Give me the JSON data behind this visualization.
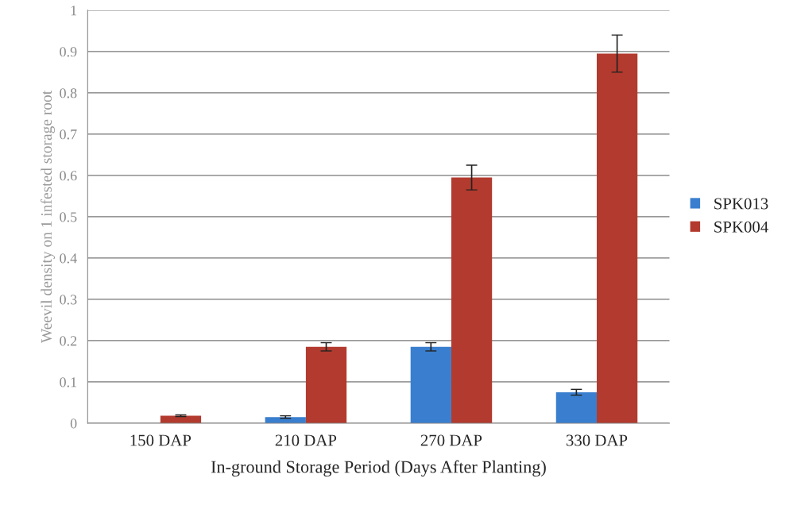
{
  "chart_data": {
    "type": "bar",
    "xlabel": "In-ground Storage Period (Days After Planting)",
    "ylabel": "Weevil density on 1 infested storage root",
    "categories": [
      "150 DAP",
      "210 DAP",
      "270 DAP",
      "330 DAP"
    ],
    "series": [
      {
        "name": "SPK013",
        "color": "#3a7fcf",
        "values": [
          null,
          0.015,
          0.185,
          0.075
        ],
        "errors": [
          null,
          0.003,
          0.01,
          0.007
        ]
      },
      {
        "name": "SPK004",
        "color": "#b33a2e",
        "values": [
          0.018,
          0.185,
          0.595,
          0.895
        ],
        "errors": [
          0.002,
          0.01,
          0.03,
          0.045
        ]
      }
    ],
    "ylim": [
      0,
      1
    ],
    "yticks": [
      0,
      0.1,
      0.2,
      0.3,
      0.4,
      0.5,
      0.6,
      0.7,
      0.8,
      0.9,
      1
    ],
    "grid": "y",
    "legend": "right"
  }
}
